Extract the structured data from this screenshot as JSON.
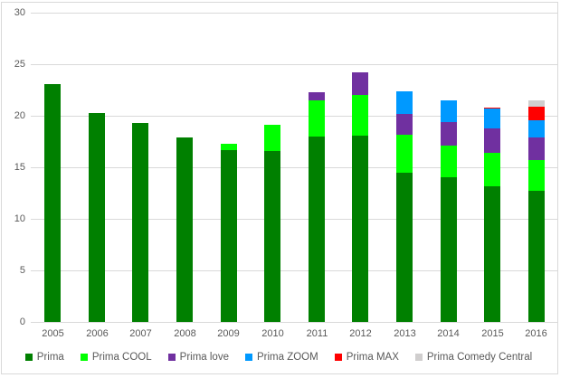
{
  "chart_data": {
    "type": "bar",
    "stacked": true,
    "title": "",
    "xlabel": "",
    "ylabel": "",
    "categories": [
      "2005",
      "2006",
      "2007",
      "2008",
      "2009",
      "2010",
      "2011",
      "2012",
      "2013",
      "2014",
      "2015",
      "2016"
    ],
    "series": [
      {
        "name": "Prima",
        "color": "#008000",
        "values": [
          23.1,
          20.3,
          19.3,
          17.9,
          16.7,
          16.6,
          18.0,
          18.1,
          14.5,
          14.0,
          13.2,
          12.7
        ]
      },
      {
        "name": "Prima COOL",
        "color": "#00ff00",
        "values": [
          0,
          0,
          0,
          0,
          0.6,
          2.5,
          3.5,
          3.9,
          3.7,
          3.1,
          3.2,
          3.0
        ]
      },
      {
        "name": "Prima love",
        "color": "#7030a0",
        "values": [
          0,
          0,
          0,
          0,
          0,
          0,
          0.8,
          2.2,
          2.0,
          2.3,
          2.4,
          2.2
        ]
      },
      {
        "name": "Prima ZOOM",
        "color": "#0099ff",
        "values": [
          0,
          0,
          0,
          0,
          0,
          0,
          0,
          0,
          2.2,
          2.1,
          1.9,
          1.7
        ]
      },
      {
        "name": "Prima MAX",
        "color": "#ff0000",
        "values": [
          0,
          0,
          0,
          0,
          0,
          0,
          0,
          0,
          0,
          0,
          0.1,
          1.3
        ]
      },
      {
        "name": "Prima Comedy Central",
        "color": "#d0cece",
        "values": [
          0,
          0,
          0,
          0,
          0,
          0,
          0,
          0,
          0,
          0,
          0,
          0.6
        ]
      }
    ],
    "ylim": [
      0,
      30
    ],
    "yticks": [
      0,
      5,
      10,
      15,
      20,
      25,
      30
    ],
    "grid": true,
    "gridline_color": "#d9d9d9",
    "axis_text_color": "#595959",
    "legend_position": "bottom"
  }
}
